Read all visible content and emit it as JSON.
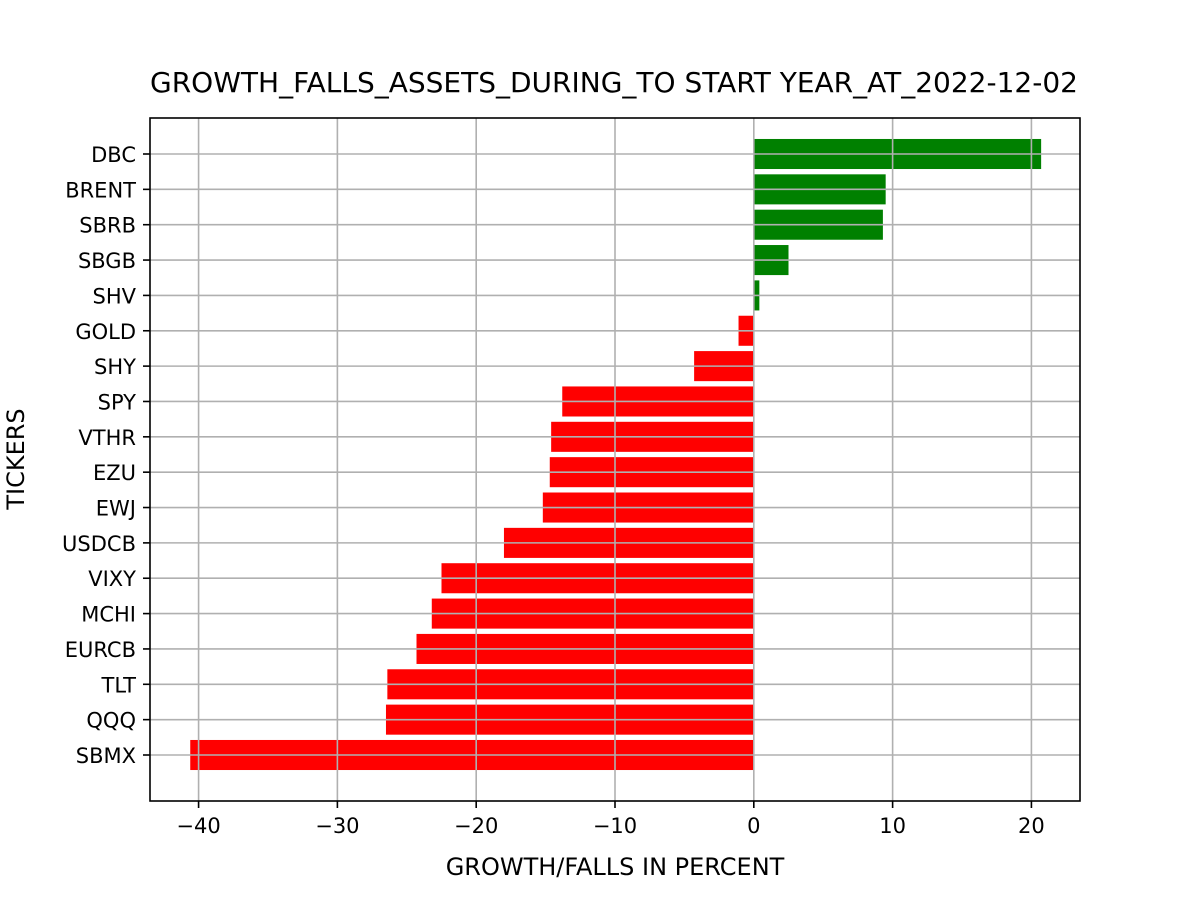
{
  "chart_data": {
    "type": "bar",
    "orientation": "horizontal",
    "title": "GROWTH_FALLS_ASSETS_DURING_TO START YEAR_AT_2022-12-02",
    "xlabel": "GROWTH/FALLS IN PERCENT",
    "ylabel": "TICKERS",
    "xlim": [
      -43.5,
      23.5
    ],
    "xticks": [
      -40,
      -30,
      -20,
      -10,
      0,
      10,
      20
    ],
    "xtick_labels": [
      "−40",
      "−30",
      "−20",
      "−10",
      "0",
      "10",
      "20"
    ],
    "grid": true,
    "positive_color": "#008000",
    "negative_color": "#ff0000",
    "categories": [
      "DBC",
      "BRENT",
      "SBRB",
      "SBGB",
      "SHV",
      "GOLD",
      "SHY",
      "SPY",
      "VTHR",
      "EZU",
      "EWJ",
      "USDCB",
      "VIXY",
      "MCHI",
      "EURCB",
      "TLT",
      "QQQ",
      "SBMX"
    ],
    "values": [
      20.7,
      9.5,
      9.3,
      2.5,
      0.4,
      -1.1,
      -4.3,
      -13.8,
      -14.6,
      -14.7,
      -15.2,
      -18.0,
      -22.5,
      -23.2,
      -24.3,
      -26.4,
      -26.5,
      -40.6
    ]
  }
}
